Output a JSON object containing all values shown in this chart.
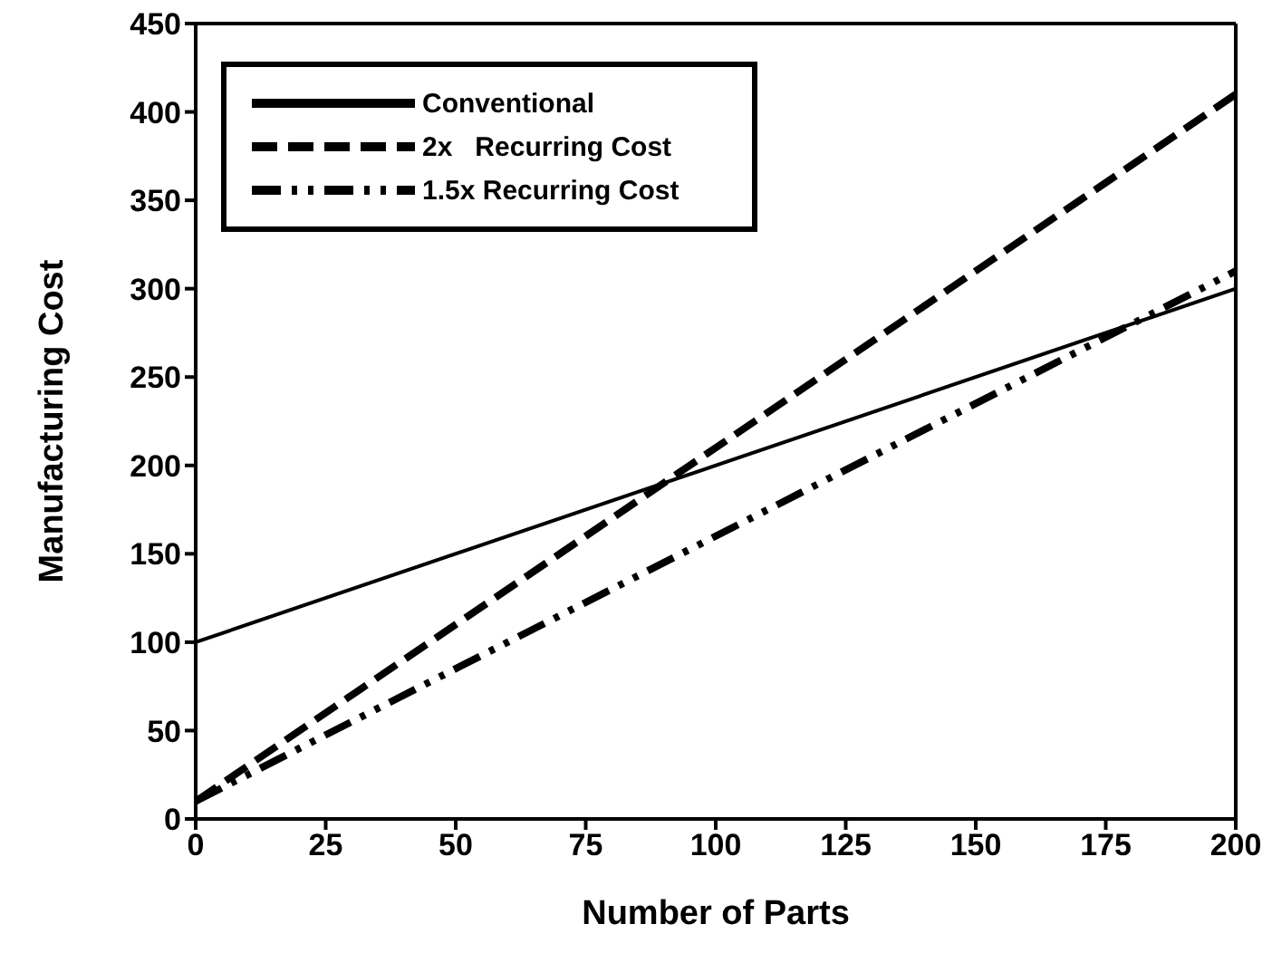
{
  "chart_data": {
    "type": "line",
    "xlabel": "Number of Parts",
    "ylabel": "Manufacturing Cost",
    "x": [
      0,
      200
    ],
    "series": [
      {
        "name": "Conventional",
        "color": "#000000",
        "values": [
          100,
          300
        ],
        "line_style": "solid"
      },
      {
        "name": "2x   Recurring Cost",
        "color": "#000000",
        "values": [
          10,
          410
        ],
        "line_style": "dashed"
      },
      {
        "name": "1.5x Recurring Cost",
        "color": "#000000",
        "values": [
          10,
          310
        ],
        "line_style": "dotted"
      }
    ],
    "xlim": [
      0,
      200
    ],
    "xticks": [
      0,
      25,
      50,
      75,
      100,
      125,
      150,
      175,
      200
    ],
    "ylim": [
      0,
      450
    ],
    "yticks": [
      0,
      50,
      100,
      150,
      200,
      250,
      300,
      350,
      400,
      450
    ],
    "grid": false,
    "legend": "top left",
    "marker": "none"
  }
}
